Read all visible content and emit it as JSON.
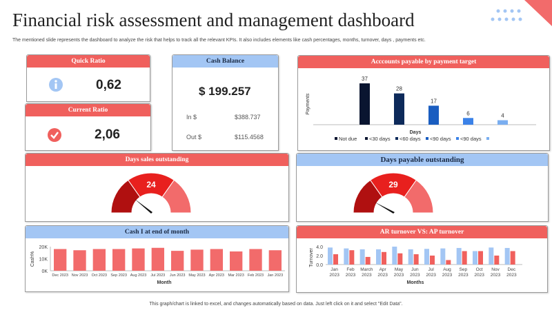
{
  "title": "Financial risk assessment and management dashboard",
  "subtitle": "The mentioned slide represents the dashboard to analyze the risk that helps to track all the relevant KPIs. It also includes elements like cash percentages, months, turnover, days , payments etc.",
  "footer": "This graph/chart is linked to excel, and changes automatically based on data. Just left click on it and select \"Edit Data\".",
  "quick_ratio": {
    "label": "Quick Ratio",
    "value": "0,62",
    "icon": "info-icon"
  },
  "current_ratio": {
    "label": "Current Ratio",
    "value": "2,06",
    "icon": "check-circle-icon"
  },
  "cash_balance": {
    "label": "Cash Balance",
    "value": "$ 199.257",
    "in_label": "In $",
    "in_value": "$388.737",
    "out_label": "Out $",
    "out_value": "$115.4568"
  },
  "colors": {
    "red": "#f0605d",
    "blue": "#a3c6f4",
    "dark_red": "#b01010",
    "mid_red": "#e8201e",
    "light_red": "#f26b6b"
  },
  "chart_data": [
    {
      "type": "bar",
      "title": "Acccounts payable by payment target",
      "xlabel": "Days",
      "ylabel": "Payments",
      "categories": [
        "Not due",
        "<30 days",
        "<60 days",
        "<90 days",
        "<90 days"
      ],
      "values": [
        37,
        28,
        17,
        6,
        4
      ],
      "colors": [
        "#0a1530",
        "#0d2a5a",
        "#1a5dc0",
        "#3b82e8",
        "#7aaef0"
      ],
      "legend": [
        "Not due",
        "<30 days",
        "<60 days",
        "<90 days",
        "<90 days",
        ""
      ],
      "legend_placement": "bottom"
    },
    {
      "type": "gauge",
      "title": "Days sales outstanding",
      "value": "24",
      "needle_angle_deg": 140
    },
    {
      "type": "gauge",
      "title": "Days payable outstanding",
      "value": "29",
      "needle_angle_deg": 150
    },
    {
      "type": "bar",
      "title": "Cash I at end of month",
      "xlabel": "Month",
      "ylabel": "Cash%",
      "ylim": [
        0,
        20000
      ],
      "yticks": [
        "0K",
        "10K",
        "20K"
      ],
      "categories": [
        "Dec 2023",
        "Nov 2023",
        "Oct 2023",
        "Sep 2023",
        "Aug 2023",
        "Jul 2023",
        "Jun 2023",
        "May 2023",
        "Apr 2023",
        "Mar 2023",
        "Feb 2023",
        "Jan 2023"
      ],
      "values": [
        18000,
        17000,
        18000,
        18000,
        18500,
        19000,
        16500,
        17500,
        18000,
        16000,
        18000,
        17000
      ],
      "color": "#f26b6b"
    },
    {
      "type": "bar",
      "title": "AR turnover VS: AP turnover",
      "xlabel": "Months",
      "ylabel": "Turnover",
      "ylim": [
        0,
        4
      ],
      "yticks": [
        "0.0",
        "2.0",
        "4.0"
      ],
      "categories": [
        [
          "Jan",
          "2023"
        ],
        [
          "Feb",
          "2023"
        ],
        [
          "March",
          "2023"
        ],
        [
          "Apr",
          "2023"
        ],
        [
          "May",
          "2023"
        ],
        [
          "Jun",
          "2023"
        ],
        [
          "Jul",
          "2023"
        ],
        [
          "Aug",
          "2023"
        ],
        [
          "Sep",
          "2023"
        ],
        [
          "Oct",
          "2023"
        ],
        [
          "Nov",
          "2023"
        ],
        [
          "Dec",
          "2023"
        ]
      ],
      "series": [
        {
          "values": [
            3.8,
            3.6,
            3.4,
            3.4,
            4.0,
            3.4,
            3.5,
            3.6,
            3.7,
            3.0,
            3.8,
            3.7
          ],
          "color": "#a3c6f4"
        },
        {
          "values": [
            2.3,
            3.2,
            1.7,
            2.8,
            2.5,
            2.3,
            2.0,
            1.0,
            3.0,
            3.0,
            2.0,
            3.0
          ],
          "color": "#f0605d"
        }
      ]
    }
  ]
}
